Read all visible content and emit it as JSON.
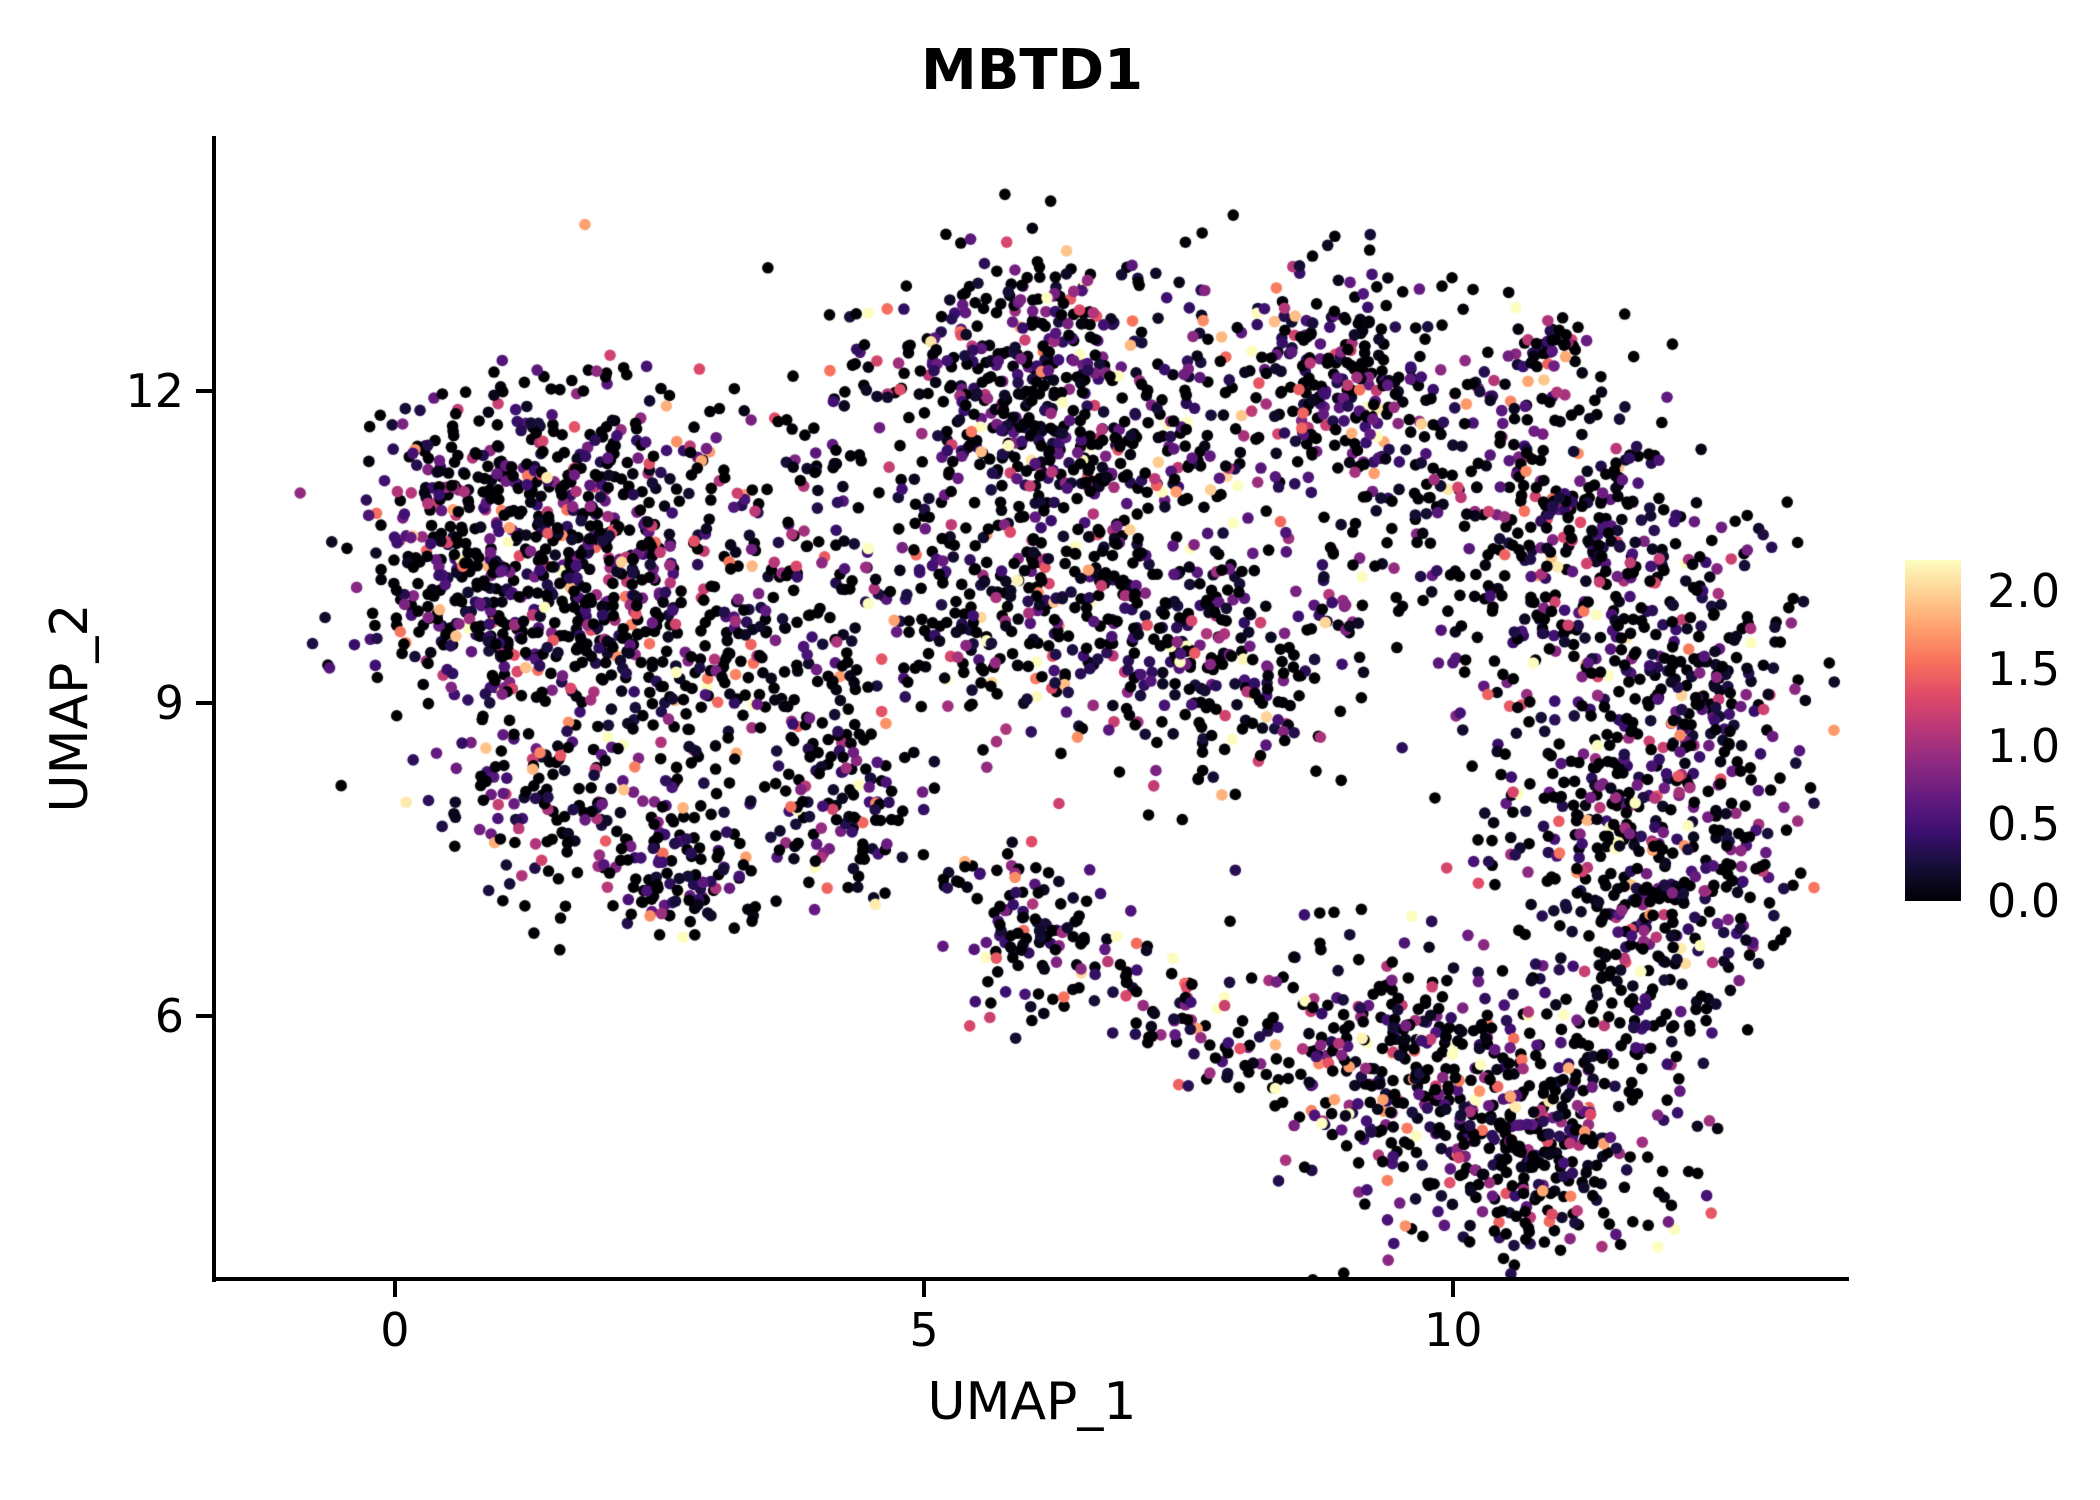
{
  "chart_data": {
    "type": "scatter",
    "title": "MBTD1",
    "xlabel": "UMAP_1",
    "ylabel": "UMAP_2",
    "x_domain": [
      -1.69,
      13.73
    ],
    "y_domain": [
      3.49,
      14.43
    ],
    "x_ticks": [
      0,
      5,
      10
    ],
    "x_tick_labels": [
      "0",
      "5",
      "10"
    ],
    "y_ticks": [
      6,
      9,
      12
    ],
    "y_tick_labels": [
      "6",
      "9",
      "12"
    ],
    "grid": "off",
    "legend_position": "right",
    "point_radius_px": 5.8,
    "seed": 42,
    "colors": {
      "axis": "#000000",
      "background": "#ffffff",
      "title": "#000000"
    },
    "value_model": {
      "zero_fraction": 0.42,
      "exp_mean": 0.62,
      "vmax": 2.2
    },
    "colorbar": {
      "vmin": 0.0,
      "vmax": 2.2,
      "ticks": [
        2.0,
        1.5,
        1.0,
        0.5,
        0.0
      ],
      "tick_labels": [
        "2.0",
        "1.5",
        "1.0",
        "0.5",
        "0.0"
      ]
    },
    "colormap": {
      "name": "magma",
      "stops": [
        {
          "t": 0.0,
          "color": "#000004"
        },
        {
          "t": 0.1,
          "color": "#140e36"
        },
        {
          "t": 0.2,
          "color": "#3b0f70"
        },
        {
          "t": 0.3,
          "color": "#641a80"
        },
        {
          "t": 0.4,
          "color": "#8c2981"
        },
        {
          "t": 0.5,
          "color": "#b73779"
        },
        {
          "t": 0.6,
          "color": "#de4968"
        },
        {
          "t": 0.7,
          "color": "#f7705c"
        },
        {
          "t": 0.8,
          "color": "#fe9f6d"
        },
        {
          "t": 0.9,
          "color": "#fecf92"
        },
        {
          "t": 1.0,
          "color": "#fcfdbf"
        }
      ]
    },
    "clusters": [
      {
        "x": 0.7,
        "y": 10.6,
        "sx": 0.6,
        "sy": 0.7,
        "n": 320
      },
      {
        "x": 1.9,
        "y": 10.9,
        "sx": 0.65,
        "sy": 0.65,
        "n": 300
      },
      {
        "x": 1.3,
        "y": 9.7,
        "sx": 0.7,
        "sy": 0.45,
        "n": 150
      },
      {
        "x": 2.4,
        "y": 9.7,
        "sx": 0.55,
        "sy": 0.7,
        "n": 140
      },
      {
        "x": 1.6,
        "y": 8.2,
        "sx": 0.6,
        "sy": 0.55,
        "n": 170
      },
      {
        "x": 2.75,
        "y": 7.3,
        "sx": 0.4,
        "sy": 0.3,
        "n": 110
      },
      {
        "x": 3.9,
        "y": 10.3,
        "sx": 0.75,
        "sy": 0.85,
        "n": 170
      },
      {
        "x": 3.6,
        "y": 8.9,
        "sx": 0.5,
        "sy": 0.6,
        "n": 90
      },
      {
        "x": 4.3,
        "y": 7.8,
        "sx": 0.35,
        "sy": 0.45,
        "n": 100
      },
      {
        "x": 5.8,
        "y": 12.0,
        "sx": 0.7,
        "sy": 0.6,
        "n": 330
      },
      {
        "x": 6.7,
        "y": 11.4,
        "sx": 0.55,
        "sy": 0.55,
        "n": 160
      },
      {
        "x": 6.3,
        "y": 12.9,
        "sx": 0.5,
        "sy": 0.25,
        "n": 50
      },
      {
        "x": 5.9,
        "y": 9.9,
        "sx": 0.8,
        "sy": 0.6,
        "n": 300
      },
      {
        "x": 7.7,
        "y": 9.4,
        "sx": 0.65,
        "sy": 0.65,
        "n": 240
      },
      {
        "x": 7.7,
        "y": 11.6,
        "sx": 0.5,
        "sy": 0.6,
        "n": 80
      },
      {
        "x": 8.8,
        "y": 12.3,
        "sx": 0.55,
        "sy": 0.5,
        "n": 180
      },
      {
        "x": 9.4,
        "y": 11.8,
        "sx": 0.45,
        "sy": 0.45,
        "n": 80
      },
      {
        "x": 10.4,
        "y": 11.4,
        "sx": 0.6,
        "sy": 0.7,
        "n": 130
      },
      {
        "x": 10.9,
        "y": 12.4,
        "sx": 0.15,
        "sy": 0.15,
        "n": 40
      },
      {
        "x": 11.3,
        "y": 10.4,
        "sx": 0.75,
        "sy": 0.7,
        "n": 260
      },
      {
        "x": 12.1,
        "y": 9.2,
        "sx": 0.6,
        "sy": 0.9,
        "n": 280
      },
      {
        "x": 11.6,
        "y": 7.6,
        "sx": 0.7,
        "sy": 0.6,
        "n": 220
      },
      {
        "x": 12.3,
        "y": 7.0,
        "sx": 0.5,
        "sy": 0.5,
        "n": 120
      },
      {
        "x": 10.8,
        "y": 9.3,
        "sx": 0.4,
        "sy": 0.7,
        "n": 40
      },
      {
        "x": 10.1,
        "y": 5.1,
        "sx": 0.85,
        "sy": 0.6,
        "n": 330
      },
      {
        "x": 9.2,
        "y": 5.8,
        "sx": 0.6,
        "sy": 0.5,
        "n": 160
      },
      {
        "x": 10.9,
        "y": 4.5,
        "sx": 0.55,
        "sy": 0.5,
        "n": 140
      },
      {
        "x": 11.5,
        "y": 5.9,
        "sx": 0.5,
        "sy": 0.6,
        "n": 120
      },
      {
        "x": 9.0,
        "y": 10.3,
        "sx": 0.6,
        "sy": 0.6,
        "n": 60
      },
      {
        "x": 6.0,
        "y": 6.7,
        "sx": 0.35,
        "sy": 0.4,
        "n": 70
      },
      {
        "type": "trail",
        "x1": 5.45,
        "y1": 7.4,
        "x2": 8.1,
        "y2": 5.5,
        "jitter": 0.28,
        "n": 120
      }
    ]
  }
}
